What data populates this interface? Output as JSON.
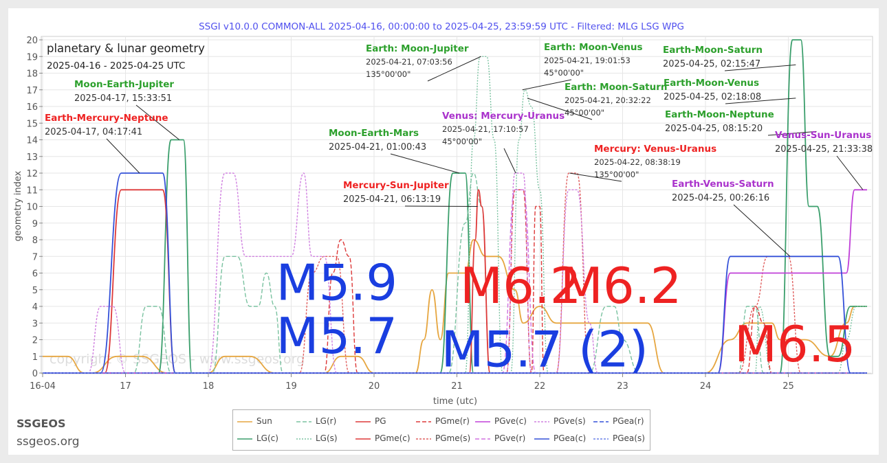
{
  "chart_data": {
    "type": "line",
    "title": "SSGI v10.0.0 COMMON-ALL 2025-04-16, 00:00:00 to 2025-04-25, 23:59:59 UTC - Filtered: MLG LSG WPG",
    "inset_title": "planetary & lunar geometry",
    "inset_subtitle": "2025-04-16 - 2025-04-25 UTC",
    "xlabel": "time (utc)",
    "ylabel": "geometry index",
    "xlim": [
      16,
      26
    ],
    "ylim": [
      0,
      20
    ],
    "x_ticks": [
      {
        "v": 16,
        "label": "16-04"
      },
      {
        "v": 17,
        "label": "17"
      },
      {
        "v": 18,
        "label": "18"
      },
      {
        "v": 19,
        "label": "19"
      },
      {
        "v": 20,
        "label": "20"
      },
      {
        "v": 21,
        "label": "21"
      },
      {
        "v": 22,
        "label": "22"
      },
      {
        "v": 23,
        "label": "23"
      },
      {
        "v": 24,
        "label": "24"
      },
      {
        "v": 25,
        "label": "25"
      }
    ],
    "y_ticks": [
      0,
      1,
      2,
      3,
      4,
      5,
      6,
      7,
      8,
      9,
      10,
      11,
      12,
      13,
      14,
      15,
      16,
      17,
      18,
      19,
      20
    ],
    "grid": true,
    "legend_position": "bottom",
    "watermark": "copyright © SSGEOS - www.ssgeos.org",
    "series": [
      {
        "name": "Sun",
        "color": "#e6a640",
        "dash": "",
        "points": [
          [
            16.0,
            1
          ],
          [
            16.3,
            1
          ],
          [
            16.5,
            0
          ],
          [
            16.6,
            0
          ],
          [
            16.9,
            1
          ],
          [
            17.2,
            1
          ],
          [
            17.5,
            0
          ],
          [
            18.0,
            0
          ],
          [
            18.2,
            1
          ],
          [
            18.5,
            1
          ],
          [
            18.8,
            0
          ],
          [
            19.4,
            0
          ],
          [
            19.6,
            1
          ],
          [
            19.8,
            1
          ],
          [
            20.0,
            0
          ],
          [
            20.5,
            0
          ],
          [
            20.6,
            2
          ],
          [
            20.7,
            5
          ],
          [
            20.8,
            2
          ],
          [
            20.9,
            6
          ],
          [
            21.1,
            6
          ],
          [
            21.2,
            8
          ],
          [
            21.35,
            7
          ],
          [
            21.5,
            7
          ],
          [
            21.7,
            5
          ],
          [
            21.8,
            3
          ],
          [
            22.0,
            4
          ],
          [
            22.2,
            3
          ],
          [
            22.5,
            3
          ],
          [
            23.0,
            3
          ],
          [
            23.3,
            3
          ],
          [
            23.5,
            0
          ],
          [
            24.0,
            0
          ],
          [
            24.3,
            2
          ],
          [
            24.5,
            3
          ],
          [
            24.8,
            3
          ],
          [
            24.9,
            2
          ],
          [
            25.2,
            2
          ],
          [
            25.5,
            1
          ],
          [
            25.7,
            3
          ],
          [
            25.8,
            4
          ],
          [
            25.95,
            4
          ]
        ]
      },
      {
        "name": "LG(c)",
        "color": "#3a9e6b",
        "dash": "",
        "points": [
          [
            16.0,
            0
          ],
          [
            17.4,
            0
          ],
          [
            17.55,
            14
          ],
          [
            17.7,
            14
          ],
          [
            17.8,
            0
          ],
          [
            20.8,
            0
          ],
          [
            20.95,
            12
          ],
          [
            21.1,
            12
          ],
          [
            21.2,
            0
          ],
          [
            24.9,
            0
          ],
          [
            25.05,
            20
          ],
          [
            25.15,
            20
          ],
          [
            25.25,
            10
          ],
          [
            25.35,
            10
          ],
          [
            25.5,
            1
          ],
          [
            25.6,
            1
          ],
          [
            25.75,
            4
          ],
          [
            25.95,
            4
          ]
        ]
      },
      {
        "name": "LG(r)",
        "color": "#7ac2a0",
        "dash": "6,3",
        "points": [
          [
            16.0,
            0
          ],
          [
            17.1,
            0
          ],
          [
            17.25,
            4
          ],
          [
            17.4,
            4
          ],
          [
            17.55,
            0
          ],
          [
            18.05,
            0
          ],
          [
            18.2,
            7
          ],
          [
            18.35,
            7
          ],
          [
            18.5,
            4
          ],
          [
            18.6,
            4
          ],
          [
            18.7,
            6
          ],
          [
            18.8,
            4
          ],
          [
            18.9,
            0
          ],
          [
            20.9,
            0
          ],
          [
            21.1,
            9
          ],
          [
            21.2,
            12
          ],
          [
            21.3,
            10
          ],
          [
            21.4,
            0
          ],
          [
            22.6,
            0
          ],
          [
            22.8,
            4
          ],
          [
            22.9,
            4
          ],
          [
            23.0,
            2
          ],
          [
            23.2,
            0
          ],
          [
            24.4,
            0
          ],
          [
            24.5,
            4
          ],
          [
            24.6,
            4
          ],
          [
            24.7,
            0
          ],
          [
            25.95,
            0
          ]
        ]
      },
      {
        "name": "LG(s)",
        "color": "#7ac2a0",
        "dash": "2,2",
        "points": [
          [
            16.0,
            0
          ],
          [
            21.1,
            0
          ],
          [
            21.2,
            14
          ],
          [
            21.28,
            19
          ],
          [
            21.36,
            19
          ],
          [
            21.45,
            14
          ],
          [
            21.55,
            0
          ],
          [
            21.65,
            0
          ],
          [
            21.75,
            14
          ],
          [
            21.82,
            17
          ],
          [
            21.9,
            16
          ],
          [
            22.0,
            11
          ],
          [
            22.1,
            0
          ],
          [
            24.6,
            0
          ],
          [
            24.65,
            4
          ],
          [
            24.8,
            0
          ],
          [
            25.6,
            0
          ],
          [
            25.7,
            2
          ],
          [
            25.82,
            4
          ],
          [
            25.95,
            4
          ]
        ]
      },
      {
        "name": "PG",
        "color": "#dd3838",
        "dash": "",
        "points": [
          [
            16.0,
            0
          ],
          [
            21.15,
            0
          ],
          [
            21.22,
            8
          ],
          [
            21.26,
            11
          ],
          [
            21.3,
            10
          ],
          [
            21.4,
            0
          ],
          [
            25.95,
            0
          ]
        ]
      },
      {
        "name": "PGme(c)",
        "color": "#dd3838",
        "dash": "",
        "points": [
          [
            16.0,
            0
          ],
          [
            16.75,
            0
          ],
          [
            16.95,
            11
          ],
          [
            17.45,
            11
          ],
          [
            17.6,
            0
          ],
          [
            25.95,
            0
          ]
        ]
      },
      {
        "name": "PGme(r)",
        "color": "#dd3838",
        "dash": "6,3",
        "points": [
          [
            16.0,
            0
          ],
          [
            19.4,
            0
          ],
          [
            19.5,
            6
          ],
          [
            19.6,
            8
          ],
          [
            19.7,
            7
          ],
          [
            19.8,
            0
          ],
          [
            21.6,
            0
          ],
          [
            21.7,
            11
          ],
          [
            21.8,
            11
          ],
          [
            21.9,
            0
          ],
          [
            21.95,
            10
          ],
          [
            22.0,
            10
          ],
          [
            22.05,
            0
          ],
          [
            24.5,
            0
          ],
          [
            24.6,
            4
          ],
          [
            24.7,
            3
          ],
          [
            24.8,
            0
          ],
          [
            25.95,
            0
          ]
        ]
      },
      {
        "name": "PGme(s)",
        "color": "#e06060",
        "dash": "3,2",
        "points": [
          [
            16.0,
            0
          ],
          [
            19.1,
            0
          ],
          [
            19.25,
            6
          ],
          [
            19.4,
            7
          ],
          [
            19.55,
            7
          ],
          [
            19.7,
            0
          ],
          [
            22.2,
            0
          ],
          [
            22.35,
            12
          ],
          [
            22.45,
            12
          ],
          [
            22.6,
            0
          ],
          [
            24.4,
            0
          ],
          [
            24.6,
            4
          ],
          [
            24.75,
            7
          ],
          [
            25.0,
            7
          ],
          [
            25.15,
            0
          ],
          [
            25.95,
            0
          ]
        ]
      },
      {
        "name": "PGve(c)",
        "color": "#c040d8",
        "dash": "",
        "points": [
          [
            16.0,
            0
          ],
          [
            24.15,
            0
          ],
          [
            24.3,
            6
          ],
          [
            25.7,
            6
          ],
          [
            25.8,
            11
          ],
          [
            25.95,
            11
          ]
        ]
      },
      {
        "name": "PGve(r)",
        "color": "#d070e0",
        "dash": "6,3",
        "points": [
          [
            16.0,
            0
          ],
          [
            21.55,
            0
          ],
          [
            21.7,
            11
          ],
          [
            21.8,
            11
          ],
          [
            21.95,
            0
          ],
          [
            25.95,
            0
          ]
        ]
      },
      {
        "name": "PGve(s)",
        "color": "#d080e0",
        "dash": "3,2",
        "points": [
          [
            16.0,
            0
          ],
          [
            16.55,
            0
          ],
          [
            16.7,
            4
          ],
          [
            16.85,
            4
          ],
          [
            17.0,
            0
          ],
          [
            18.0,
            0
          ],
          [
            18.2,
            12
          ],
          [
            18.3,
            12
          ],
          [
            18.45,
            7
          ],
          [
            18.6,
            7
          ],
          [
            19.0,
            7
          ],
          [
            19.15,
            12
          ],
          [
            19.25,
            7
          ],
          [
            19.4,
            7
          ],
          [
            19.55,
            0
          ],
          [
            21.6,
            0
          ],
          [
            21.7,
            12
          ],
          [
            21.8,
            12
          ],
          [
            21.9,
            0
          ],
          [
            22.2,
            0
          ],
          [
            22.35,
            11
          ],
          [
            22.45,
            11
          ],
          [
            22.6,
            3
          ],
          [
            22.7,
            0
          ],
          [
            25.95,
            0
          ]
        ]
      },
      {
        "name": "PGea(c)",
        "color": "#3350d8",
        "dash": "",
        "points": [
          [
            16.0,
            0
          ],
          [
            16.7,
            0
          ],
          [
            16.95,
            12
          ],
          [
            17.45,
            12
          ],
          [
            17.6,
            0
          ],
          [
            24.15,
            0
          ],
          [
            24.3,
            7
          ],
          [
            25.6,
            7
          ],
          [
            25.75,
            0
          ],
          [
            25.95,
            0
          ]
        ]
      },
      {
        "name": "PGea(r)",
        "color": "#3350d8",
        "dash": "6,3",
        "points": [
          [
            16.0,
            0
          ],
          [
            25.95,
            0
          ]
        ]
      },
      {
        "name": "PGea(s)",
        "color": "#6a80e8",
        "dash": "3,2",
        "points": [
          [
            16.0,
            0
          ],
          [
            25.95,
            0
          ]
        ]
      }
    ],
    "annotations": [
      {
        "title": "Moon-Earth-Jupiter",
        "date": "2025-04-17, 15:33:51",
        "angle": "",
        "color": "#2ca02c",
        "x": 17.65,
        "y": 14
      },
      {
        "title": "Earth-Mercury-Neptune",
        "date": "2025-04-17, 04:17:41",
        "angle": "",
        "color": "#ee2222",
        "x": 17.17,
        "y": 12
      },
      {
        "title": "Moon-Earth-Mars",
        "date": "2025-04-21, 01:00:43",
        "angle": "",
        "color": "#2ca02c",
        "x": 21.03,
        "y": 12
      },
      {
        "title": "Mercury-Sun-Jupiter",
        "date": "2025-04-21, 06:13:19",
        "angle": "",
        "color": "#ee2222",
        "x": 21.25,
        "y": 10
      },
      {
        "title": "Earth: Moon-Jupiter",
        "date": "2025-04-21, 07:03:56",
        "angle": "135°00'00\"",
        "color": "#2ca02c",
        "x": 21.29,
        "y": 19
      },
      {
        "title": "Earth: Moon-Venus",
        "date": "2025-04-21, 19:01:53",
        "angle": "45°00'00\"",
        "color": "#2ca02c",
        "x": 21.79,
        "y": 17
      },
      {
        "title": "Earth: Moon-Saturn",
        "date": "2025-04-21, 20:32:22",
        "angle": "45°00'00\"",
        "color": "#2ca02c",
        "x": 21.85,
        "y": 16.5
      },
      {
        "title": "Venus: Mercury-Uranus",
        "date": "2025-04-21, 17:10:57",
        "angle": "45°00'00\"",
        "color": "#aa33cc",
        "x": 21.71,
        "y": 12
      },
      {
        "title": "Mercury: Venus-Uranus",
        "date": "2025-04-22, 08:38:19",
        "angle": "135°00'00\"",
        "color": "#ee2222",
        "x": 22.36,
        "y": 12
      },
      {
        "title": "Earth-Moon-Saturn",
        "date": "2025-04-25, 02:15:47",
        "angle": "",
        "color": "#2ca02c",
        "x": 25.09,
        "y": 18.5
      },
      {
        "title": "Earth-Moon-Venus",
        "date": "2025-04-25, 02:18:08",
        "angle": "",
        "color": "#2ca02c",
        "x": 25.09,
        "y": 16.5
      },
      {
        "title": "Earth-Moon-Neptune",
        "date": "2025-04-25, 08:15:20",
        "angle": "",
        "color": "#2ca02c",
        "x": 25.34,
        "y": 14.5
      },
      {
        "title": "Venus-Sun-Uranus",
        "date": "2025-04-25, 21:33:38",
        "angle": "",
        "color": "#aa33cc",
        "x": 25.9,
        "y": 11
      },
      {
        "title": "Earth-Venus-Saturn",
        "date": "2025-04-25, 00:26:16",
        "angle": "",
        "color": "#aa33cc",
        "x": 25.02,
        "y": 7
      }
    ],
    "magnitude_labels": [
      {
        "text": "M5.9",
        "color": "#1a3ee0",
        "x": 19.55,
        "y": 4.4
      },
      {
        "text": "M5.7",
        "color": "#1a3ee0",
        "x": 19.55,
        "y": 1.2
      },
      {
        "text": "M6.2",
        "color": "#ee2222",
        "x": 21.77,
        "y": 4.2
      },
      {
        "text": "M6.2",
        "color": "#ee2222",
        "x": 22.98,
        "y": 4.2
      },
      {
        "text": "M5.7 (2)",
        "color": "#1a3ee0",
        "x": 22.06,
        "y": 0.4
      },
      {
        "text": "M6.5",
        "color": "#ee2222",
        "x": 25.08,
        "y": 0.7
      }
    ]
  },
  "branding": {
    "name": "SSGEOS",
    "url": "ssgeos.org"
  }
}
